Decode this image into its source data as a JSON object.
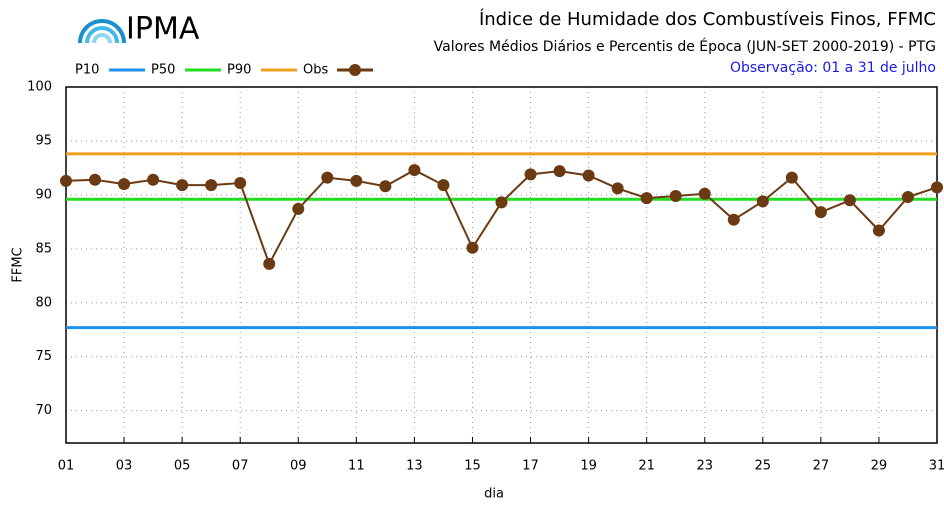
{
  "chart_data": {
    "type": "line",
    "logo": "IPMA",
    "title": "Índice de Humidade dos Combustíveis Finos, FFMC",
    "subtitle": "Valores Médios Diários e Percentis de Época (JUN-SET 2000-2019) - PTG",
    "note": "Observação: 01 a 31 de julho",
    "xlabel": "dia",
    "ylabel": "FFMC",
    "xlim": [
      1,
      31
    ],
    "ylim": [
      67,
      100
    ],
    "xticks": [
      {
        "value": 1,
        "label": "01"
      },
      {
        "value": 3,
        "label": "03"
      },
      {
        "value": 5,
        "label": "05"
      },
      {
        "value": 7,
        "label": "07"
      },
      {
        "value": 9,
        "label": "09"
      },
      11,
      13,
      15,
      17,
      19,
      21,
      23,
      25,
      27,
      29,
      31
    ],
    "yticks": [
      70,
      75,
      80,
      85,
      90,
      95,
      100
    ],
    "grid": true,
    "x": [
      1,
      2,
      3,
      4,
      5,
      6,
      7,
      8,
      9,
      10,
      11,
      12,
      13,
      14,
      15,
      16,
      17,
      18,
      19,
      20,
      21,
      22,
      23,
      24,
      25,
      26,
      27,
      28,
      29,
      30,
      31
    ],
    "series": [
      {
        "name": "P10",
        "color": "#1e90ee",
        "value": 77.7
      },
      {
        "name": "P50",
        "color": "#22dd22",
        "value": 89.6
      },
      {
        "name": "P90",
        "color": "#f0a020",
        "value": 93.8
      },
      {
        "name": "Obs",
        "color": "#6b3a12",
        "values": [
          91.3,
          91.4,
          91.0,
          91.4,
          90.9,
          90.9,
          91.1,
          83.6,
          88.7,
          91.6,
          91.3,
          90.8,
          92.3,
          90.9,
          85.1,
          89.3,
          91.9,
          92.2,
          91.8,
          90.6,
          89.7,
          89.9,
          90.1,
          87.7,
          89.4,
          91.6,
          88.4,
          89.5,
          86.7,
          89.8,
          90.7
        ]
      }
    ]
  }
}
